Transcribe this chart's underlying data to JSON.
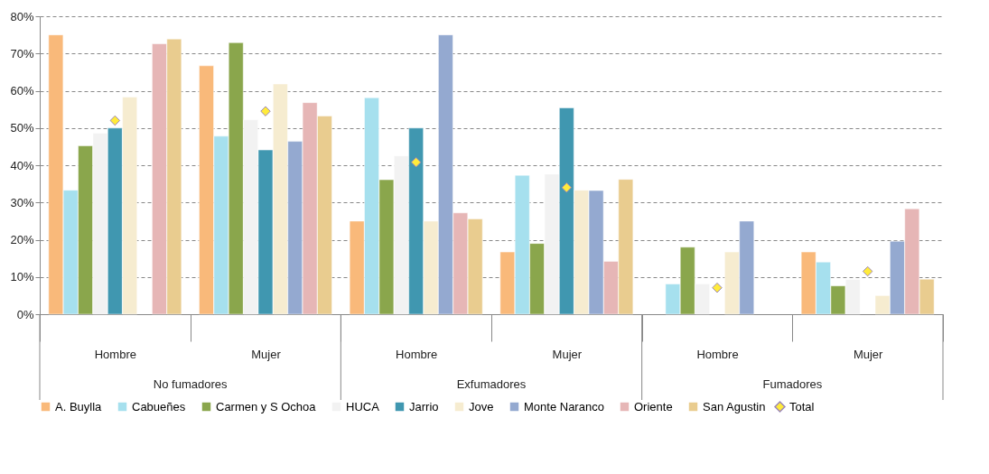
{
  "chart_data": {
    "type": "bar",
    "categories": [
      "Hombre",
      "Mujer",
      "Hombre",
      "Mujer",
      "Hombre",
      "Mujer"
    ],
    "annotations": [
      "No fumadores",
      "Exfumadores",
      "Fumadores"
    ],
    "series": [
      {
        "name": "A. Buylla",
        "color": "#f9b97a",
        "values": [
          75,
          66.7,
          25,
          16.7,
          null,
          16.7
        ]
      },
      {
        "name": "Cabueñes",
        "color": "#a6e0ee",
        "values": [
          33.3,
          47.8,
          58.1,
          37.3,
          8.1,
          14
        ]
      },
      {
        "name": "Carmen y S Ochoa",
        "color": "#8aa64c",
        "values": [
          45.2,
          72.9,
          36.1,
          19,
          18,
          7.6
        ]
      },
      {
        "name": "HUCA",
        "color": "#f2f2f2",
        "values": [
          48.6,
          52.2,
          42.5,
          37.6,
          8.1,
          9.3
        ]
      },
      {
        "name": "Jarrio",
        "color": "#4097b0",
        "values": [
          50,
          44.1,
          50,
          55.4,
          null,
          null
        ]
      },
      {
        "name": "Jove",
        "color": "#f6ecd0",
        "values": [
          58.3,
          61.8,
          25,
          33.3,
          16.7,
          5
        ]
      },
      {
        "name": "Monte Naranco",
        "color": "#94a9d0",
        "values": [
          null,
          46.4,
          75,
          33.2,
          25,
          19.6
        ]
      },
      {
        "name": "Oriente",
        "color": "#e6b6b6",
        "values": [
          72.6,
          56.8,
          27.2,
          14.2,
          null,
          28.3
        ]
      },
      {
        "name": "San Agustin",
        "color": "#e9cc8f",
        "values": [
          73.9,
          53.2,
          25.6,
          36.2,
          null,
          9.4
        ]
      },
      {
        "name": "Total",
        "color": "#ffeb3b",
        "type": "scatter",
        "marker": "diamond",
        "values": [
          52,
          54.5,
          40.8,
          34,
          7.1,
          11.5
        ]
      }
    ],
    "ylim": [
      0,
      80
    ],
    "yticks": [
      {
        "value": 0,
        "label": "0%"
      },
      {
        "value": 10,
        "label": "10%"
      },
      {
        "value": 20,
        "label": "20%"
      },
      {
        "value": 30,
        "label": "30%"
      },
      {
        "value": 40,
        "label": "40%"
      },
      {
        "value": 50,
        "label": "50%"
      },
      {
        "value": 60,
        "label": "60%"
      },
      {
        "value": 70,
        "label": "70%"
      },
      {
        "value": 80,
        "label": "80%"
      }
    ],
    "grid": "y",
    "legend": "bottom"
  }
}
